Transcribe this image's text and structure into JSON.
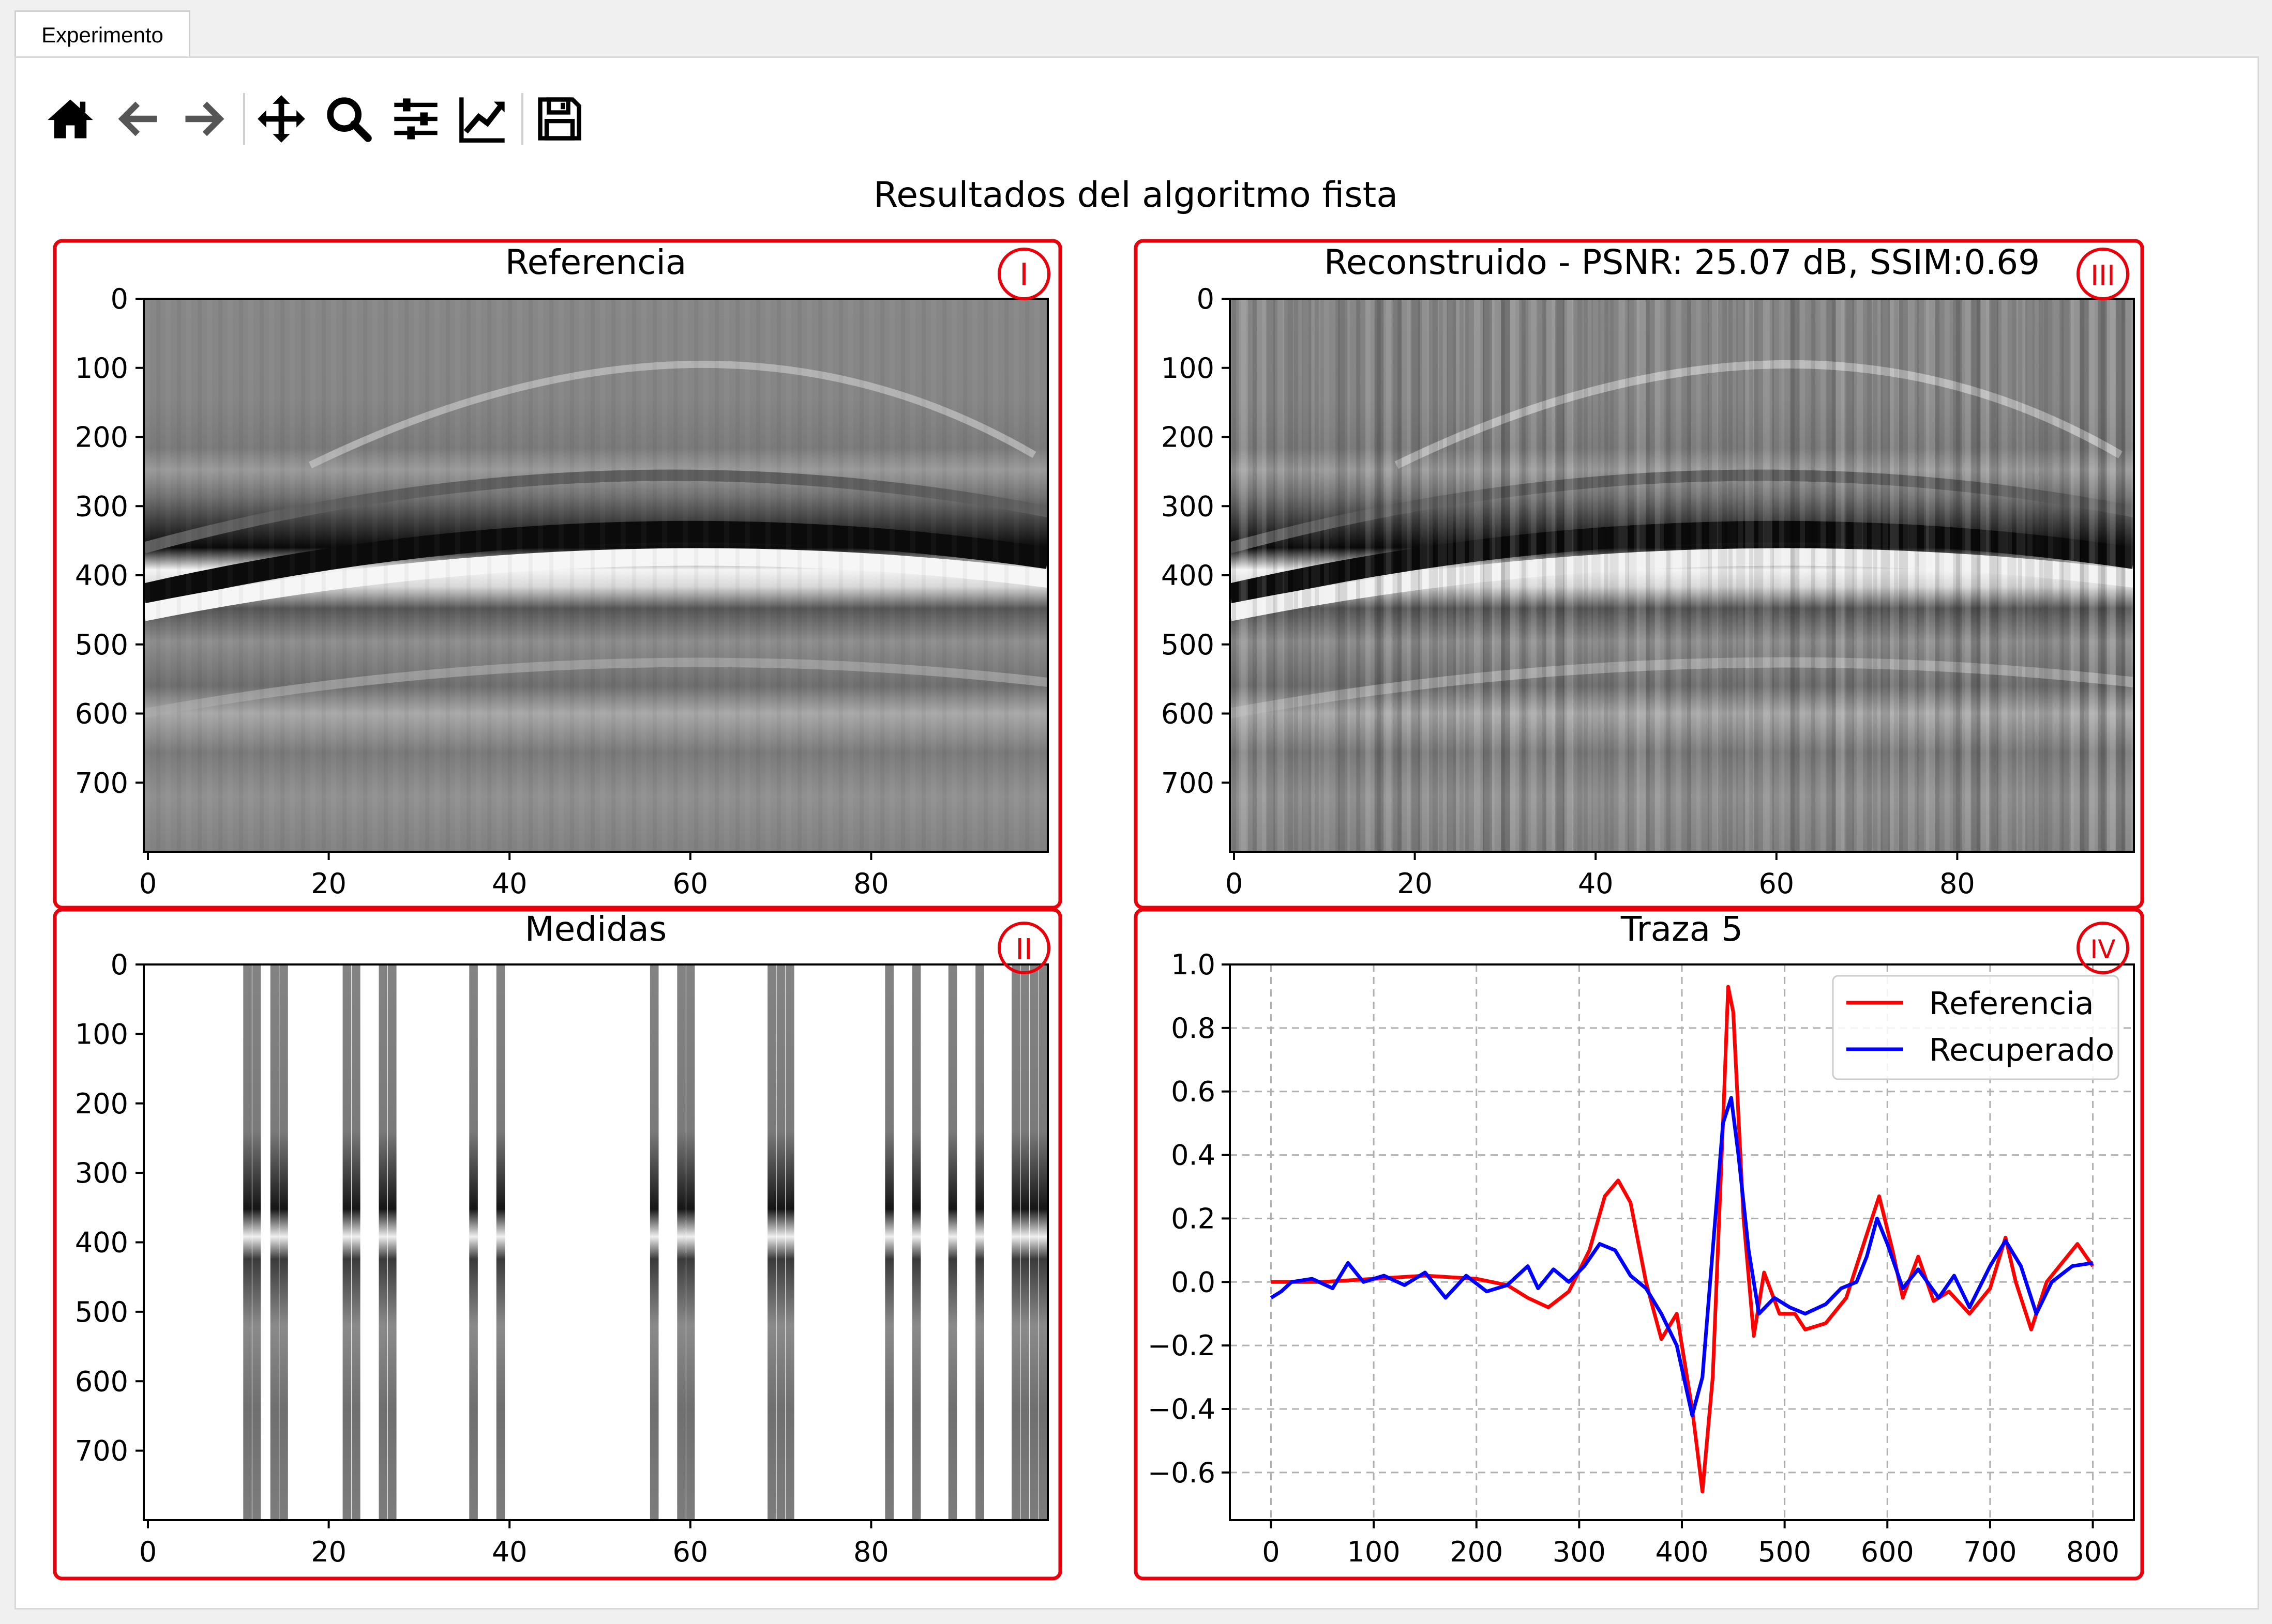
{
  "window": {
    "tab_label": "Experimento"
  },
  "toolbar": {
    "items": [
      {
        "name": "home-icon",
        "tooltip": ""
      },
      {
        "name": "back-icon",
        "tooltip": ""
      },
      {
        "name": "forward-icon",
        "tooltip": ""
      },
      {
        "name": "pan-icon",
        "tooltip": ""
      },
      {
        "name": "zoom-icon",
        "tooltip": ""
      },
      {
        "name": "subplots-config-icon",
        "tooltip": ""
      },
      {
        "name": "edit-axis-icon",
        "tooltip": ""
      },
      {
        "name": "save-icon",
        "tooltip": ""
      }
    ]
  },
  "figure": {
    "suptitle": "Resultados del algoritmo fista",
    "annotation_color": "#e8000b",
    "panels": {
      "ref": {
        "title": "Referencia",
        "marker": "I"
      },
      "meas": {
        "title": "Medidas",
        "marker": "II"
      },
      "recon": {
        "title": "Reconstruido - PSNR: 25.07 dB, SSIM:0.69",
        "marker": "III"
      },
      "trace": {
        "title": "Traza 5",
        "marker": "IV"
      }
    }
  },
  "chart_data": [
    {
      "type": "heatmap",
      "title": "Referencia",
      "colormap": "gray",
      "xlim": [
        0,
        100
      ],
      "ylim": [
        800,
        0
      ],
      "x_ticks": [
        0,
        20,
        40,
        60,
        80
      ],
      "y_ticks": [
        0,
        100,
        200,
        300,
        400,
        500,
        600,
        700
      ]
    },
    {
      "type": "heatmap",
      "title": "Medidas",
      "colormap": "gray",
      "xlim": [
        0,
        100
      ],
      "ylim": [
        800,
        0
      ],
      "x_ticks": [
        0,
        20,
        40,
        60,
        80
      ],
      "y_ticks": [
        0,
        100,
        200,
        300,
        400,
        500,
        600,
        700
      ],
      "sampled_columns": [
        11,
        12,
        14,
        15,
        22,
        23,
        26,
        27,
        36,
        39,
        56,
        59,
        60,
        69,
        70,
        71,
        82,
        85,
        89,
        92,
        96,
        97,
        98,
        99
      ]
    },
    {
      "type": "heatmap",
      "title": "Reconstruido - PSNR: 25.07 dB, SSIM:0.69",
      "colormap": "gray",
      "xlim": [
        0,
        100
      ],
      "ylim": [
        800,
        0
      ],
      "x_ticks": [
        0,
        20,
        40,
        60,
        80
      ],
      "y_ticks": [
        0,
        100,
        200,
        300,
        400,
        500,
        600,
        700
      ],
      "psnr_db": 25.07,
      "ssim": 0.69
    },
    {
      "type": "line",
      "title": "Traza 5",
      "xlim": [
        -40,
        840
      ],
      "ylim": [
        -0.75,
        1.0
      ],
      "x_ticks": [
        0,
        100,
        200,
        300,
        400,
        500,
        600,
        700,
        800
      ],
      "y_ticks": [
        1.0,
        0.8,
        0.6,
        0.4,
        0.2,
        0.0,
        -0.2,
        -0.4,
        -0.6
      ],
      "x_tick_labels": [
        "0",
        "100",
        "200",
        "300",
        "400",
        "500",
        "600",
        "700",
        "800"
      ],
      "y_tick_labels": [
        "1.0",
        "0.8",
        "0.6",
        "0.4",
        "0.2",
        "0.0",
        "−0.2",
        "−0.4",
        "−0.6"
      ],
      "grid": true,
      "legend_position": "top-right",
      "series": [
        {
          "name": "Referencia",
          "color": "#ff0000",
          "x": [
            0,
            50,
            100,
            150,
            200,
            230,
            250,
            270,
            290,
            310,
            325,
            338,
            350,
            365,
            380,
            395,
            410,
            420,
            430,
            440,
            445,
            450,
            460,
            470,
            480,
            495,
            510,
            520,
            540,
            560,
            580,
            592,
            605,
            615,
            630,
            645,
            660,
            680,
            700,
            715,
            725,
            740,
            755,
            770,
            785,
            800
          ],
          "y": [
            0.0,
            0.0,
            0.01,
            0.02,
            0.01,
            -0.01,
            -0.05,
            -0.08,
            -0.03,
            0.1,
            0.27,
            0.32,
            0.25,
            0.0,
            -0.18,
            -0.1,
            -0.4,
            -0.66,
            -0.3,
            0.5,
            0.93,
            0.85,
            0.2,
            -0.17,
            0.03,
            -0.1,
            -0.1,
            -0.15,
            -0.13,
            -0.05,
            0.15,
            0.27,
            0.1,
            -0.05,
            0.08,
            -0.06,
            -0.03,
            -0.1,
            -0.02,
            0.14,
            0.0,
            -0.15,
            0.0,
            0.06,
            0.12,
            0.05
          ]
        },
        {
          "name": "Recuperado",
          "color": "#0000ff",
          "x": [
            0,
            10,
            20,
            40,
            60,
            75,
            90,
            110,
            130,
            150,
            170,
            190,
            210,
            230,
            250,
            260,
            275,
            290,
            305,
            320,
            335,
            350,
            365,
            380,
            395,
            410,
            420,
            430,
            440,
            448,
            455,
            465,
            475,
            490,
            505,
            520,
            540,
            555,
            570,
            580,
            590,
            600,
            615,
            630,
            650,
            665,
            680,
            700,
            715,
            730,
            745,
            760,
            780,
            800
          ],
          "y": [
            -0.05,
            -0.03,
            0.0,
            0.01,
            -0.02,
            0.06,
            0.0,
            0.02,
            -0.01,
            0.03,
            -0.05,
            0.02,
            -0.03,
            -0.01,
            0.05,
            -0.02,
            0.04,
            0.0,
            0.05,
            0.12,
            0.1,
            0.02,
            -0.02,
            -0.1,
            -0.2,
            -0.42,
            -0.3,
            0.1,
            0.5,
            0.58,
            0.4,
            0.1,
            -0.1,
            -0.05,
            -0.08,
            -0.1,
            -0.07,
            -0.02,
            0.0,
            0.08,
            0.2,
            0.12,
            -0.02,
            0.04,
            -0.05,
            0.02,
            -0.08,
            0.05,
            0.13,
            0.05,
            -0.1,
            0.0,
            0.05,
            0.06
          ]
        }
      ]
    }
  ]
}
